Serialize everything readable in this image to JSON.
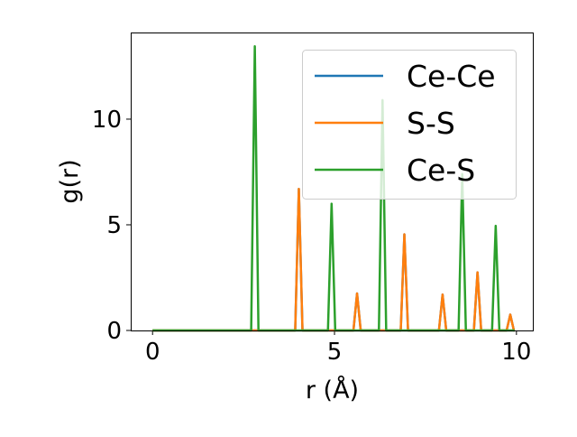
{
  "chart_data": {
    "type": "line",
    "xlabel": "r (Å)",
    "ylabel": "g(r)",
    "xlim": [
      -0.6,
      10.45
    ],
    "ylim": [
      0,
      14.1
    ],
    "xticks": [
      0,
      5,
      10
    ],
    "yticks": [
      0,
      5,
      10
    ],
    "grid": false,
    "legend_position": "top-right",
    "series": [
      {
        "name": "Ce-Ce",
        "color": "#1f77b4",
        "peaks": [
          [
            4.02,
            6.7
          ],
          [
            5.62,
            1.75
          ],
          [
            6.92,
            4.55
          ],
          [
            7.97,
            1.7
          ],
          [
            8.93,
            2.75
          ],
          [
            9.83,
            0.75
          ]
        ]
      },
      {
        "name": "S-S",
        "color": "#ff7f0e",
        "peaks": [
          [
            4.02,
            6.7
          ],
          [
            5.62,
            1.75
          ],
          [
            6.92,
            4.55
          ],
          [
            7.97,
            1.7
          ],
          [
            8.93,
            2.75
          ],
          [
            9.83,
            0.75
          ]
        ]
      },
      {
        "name": "Ce-S",
        "color": "#2ca02c",
        "peaks": [
          [
            2.81,
            13.45
          ],
          [
            4.92,
            6.0
          ],
          [
            6.32,
            10.9
          ],
          [
            8.51,
            7.4
          ],
          [
            9.43,
            4.95
          ]
        ]
      }
    ]
  }
}
